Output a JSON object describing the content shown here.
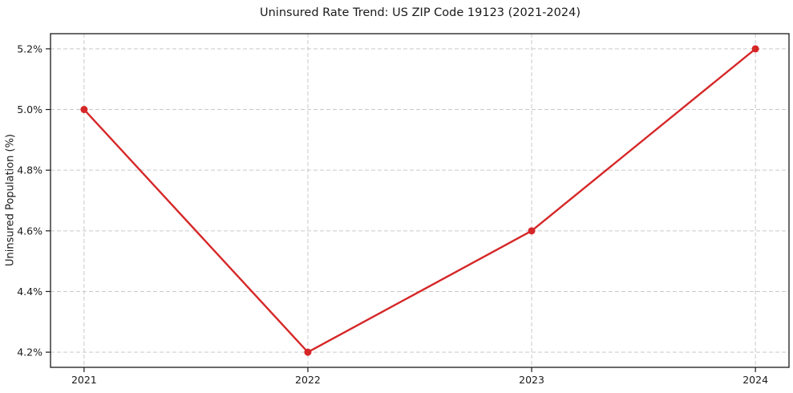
{
  "chart_data": {
    "type": "line",
    "title": "Uninsured Rate Trend: US ZIP Code 19123 (2021-2024)",
    "xlabel": "",
    "ylabel": "Uninsured Population (%)",
    "x": [
      2021,
      2022,
      2023,
      2024
    ],
    "values": [
      5.0,
      4.2,
      4.6,
      5.2
    ],
    "x_tick_labels": [
      "2021",
      "2022",
      "2023",
      "2024"
    ],
    "y_tick_values": [
      4.2,
      4.4,
      4.6,
      4.8,
      5.0,
      5.2
    ],
    "y_tick_labels": [
      "4.2%",
      "4.4%",
      "4.6%",
      "4.8%",
      "5.0%",
      "5.2%"
    ],
    "xlim": [
      2020.85,
      2024.15
    ],
    "ylim": [
      4.15,
      5.25
    ],
    "grid": true,
    "grid_style": "dashed",
    "legend": false,
    "line_color": "#d62728",
    "marker": "circle",
    "grid_color": "#c9c9c9",
    "axis_color": "#1a1a1a",
    "text_color": "#1a1a1a",
    "background": "#ffffff"
  }
}
